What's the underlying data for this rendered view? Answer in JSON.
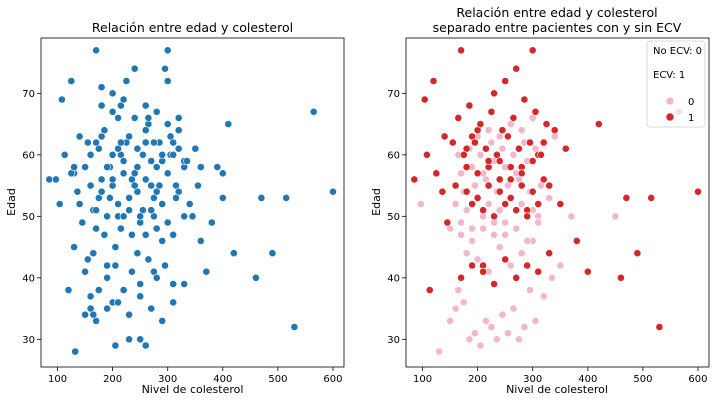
{
  "chart_data": [
    {
      "type": "scatter",
      "title": "Relación entre edad y colesterol",
      "xlabel": "Nivel de colesterol",
      "ylabel": "Edad",
      "xlim": [
        70,
        620
      ],
      "ylim": [
        25.5,
        79
      ],
      "x_ticks": [
        100,
        200,
        300,
        400,
        500,
        600
      ],
      "y_ticks": [
        30,
        40,
        50,
        60,
        70
      ],
      "grid": false,
      "series": [
        {
          "color": "#1f77b4",
          "x": [
            85,
            97,
            104,
            108,
            113,
            120,
            125,
            130,
            132,
            136,
            140,
            145,
            150,
            155,
            160,
            165,
            170,
            175,
            180,
            185,
            190,
            195,
            200,
            205,
            210,
            215,
            220,
            225,
            230,
            235,
            240,
            245,
            250,
            255,
            260,
            265,
            270,
            275,
            280,
            285,
            290,
            295,
            300,
            305,
            310,
            315,
            320,
            330,
            340,
            350,
            360,
            370,
            380,
            390,
            400,
            410,
            420,
            460,
            470,
            490,
            515,
            530,
            565,
            600,
            125,
            130,
            150,
            165,
            175,
            180,
            200,
            210,
            215,
            225,
            235,
            245,
            255,
            265,
            275,
            285,
            300,
            310,
            320,
            330,
            345,
            360,
            400,
            160,
            170,
            180,
            190,
            200,
            210,
            220,
            230,
            240,
            250,
            260,
            270,
            280,
            290,
            300,
            310,
            320,
            330,
            340,
            130,
            140,
            155,
            165,
            185,
            195,
            205,
            215,
            230,
            245,
            260,
            275,
            290,
            300,
            315,
            330,
            355,
            170,
            185,
            200,
            215,
            230,
            245,
            260,
            275,
            290,
            305,
            320,
            335,
            160,
            175,
            190,
            205,
            220,
            235,
            250,
            265,
            280,
            295,
            310,
            180,
            200,
            220,
            240,
            260,
            280,
            300,
            320,
            150,
            170,
            190,
            210,
            230,
            250,
            270,
            290,
            310,
            160,
            180,
            200,
            220,
            240,
            260,
            280,
            300,
            170,
            190,
            210,
            230,
            250,
            270,
            290
          ],
          "y": [
            56,
            56,
            52,
            69,
            60,
            38,
            72,
            57,
            28,
            54,
            63,
            49,
            58,
            62,
            35,
            44,
            77,
            61,
            63,
            64,
            42,
            58,
            70,
            29,
            66,
            60,
            59,
            72,
            30,
            56,
            74,
            58,
            30,
            51,
            29,
            65,
            59,
            53,
            48,
            62,
            59,
            74,
            77,
            60,
            62,
            55,
            64,
            58,
            52,
            61,
            46,
            41,
            49,
            58,
            53,
            65,
            44,
            40,
            53,
            44,
            53,
            32,
            67,
            54,
            57,
            58,
            41,
            34,
            53,
            71,
            36,
            50,
            68,
            62,
            47,
            54,
            60,
            66,
            41,
            55,
            72,
            47,
            61,
            39,
            50,
            58,
            57,
            60,
            48,
            56,
            58,
            55,
            61,
            50,
            53,
            57,
            49,
            62,
            55,
            58,
            52,
            57,
            60,
            54,
            59,
            52,
            45,
            52,
            43,
            51,
            47,
            53,
            45,
            48,
            51,
            44,
            47,
            50,
            46,
            49,
            53,
            50,
            55,
            62,
            64,
            60,
            62,
            63,
            61,
            64,
            62,
            60,
            63,
            61,
            59,
            37,
            38,
            40,
            42,
            38,
            41,
            39,
            43,
            40,
            42,
            39,
            68,
            67,
            69,
            66,
            68,
            67,
            65,
            66,
            34,
            33,
            35,
            36,
            34,
            37,
            35,
            33,
            36,
            55,
            54,
            56,
            57,
            55,
            56,
            54,
            57,
            51,
            50,
            52,
            53,
            50,
            51,
            52
          ]
        }
      ]
    },
    {
      "type": "scatter",
      "title": "Relación entre edad y colesterol\nseparado entre pacientes con y sin ECV",
      "xlabel": "Nivel de colesterol",
      "ylabel": "Edad",
      "xlim": [
        70,
        620
      ],
      "ylim": [
        25.5,
        79
      ],
      "x_ticks": [
        100,
        200,
        300,
        400,
        500,
        600
      ],
      "y_ticks": [
        30,
        40,
        50,
        60,
        70
      ],
      "grid": false,
      "legend": {
        "placement": "top-right",
        "lines": [
          "No ECV: 0",
          "ECV: 1"
        ]
      },
      "series": [
        {
          "name": "0",
          "color": "#f4b6cb",
          "x": [
            97,
            130,
            150,
            160,
            165,
            175,
            185,
            195,
            205,
            215,
            225,
            235,
            245,
            255,
            265,
            275,
            285,
            295,
            305,
            320,
            335,
            350,
            180,
            200,
            220,
            240,
            260,
            280,
            300,
            170,
            190,
            210,
            230,
            250,
            270,
            290,
            310,
            160,
            180,
            200,
            220,
            240,
            260,
            280,
            300,
            175,
            195,
            215,
            235,
            255,
            275,
            295,
            315,
            330,
            370,
            170,
            190,
            210,
            230,
            250,
            270,
            290,
            450,
            165,
            185,
            205,
            225,
            245,
            265,
            285,
            305,
            200,
            220,
            240,
            260,
            280,
            300,
            320,
            340,
            150,
            170,
            190,
            210,
            230,
            250,
            270,
            290,
            310
          ],
          "y": [
            52,
            28,
            33,
            35,
            38,
            36,
            30,
            31,
            29,
            33,
            32,
            30,
            34,
            31,
            35,
            30,
            32,
            38,
            33,
            37,
            40,
            42,
            44,
            43,
            41,
            45,
            42,
            44,
            46,
            47,
            46,
            48,
            47,
            49,
            48,
            46,
            50,
            52,
            51,
            53,
            52,
            51,
            53,
            52,
            51,
            54,
            55,
            56,
            54,
            55,
            56,
            54,
            55,
            53,
            50,
            57,
            58,
            57,
            59,
            58,
            57,
            59,
            50,
            60,
            61,
            60,
            62,
            61,
            60,
            62,
            61,
            63,
            64,
            63,
            65,
            64,
            66,
            62,
            63,
            48,
            49,
            48,
            50,
            49,
            47,
            48,
            50,
            49
          ]
        },
        {
          "name": "1",
          "color": "#d62728",
          "x": [
            85,
            104,
            108,
            113,
            120,
            125,
            136,
            140,
            145,
            155,
            170,
            180,
            190,
            200,
            210,
            220,
            230,
            240,
            250,
            260,
            270,
            280,
            290,
            300,
            310,
            320,
            330,
            340,
            350,
            360,
            380,
            400,
            420,
            460,
            470,
            490,
            515,
            530,
            565,
            600,
            165,
            185,
            205,
            225,
            245,
            265,
            285,
            305,
            325,
            175,
            195,
            215,
            235,
            255,
            275,
            295,
            315,
            180,
            200,
            220,
            240,
            260,
            280,
            300,
            320,
            160,
            180,
            200,
            220,
            240,
            260,
            280,
            300,
            190,
            210,
            230,
            250,
            270,
            290,
            310,
            170,
            190,
            210,
            230,
            250,
            270,
            290,
            310,
            330
          ],
          "y": [
            56,
            69,
            60,
            38,
            72,
            57,
            54,
            63,
            49,
            62,
            77,
            61,
            63,
            64,
            42,
            58,
            70,
            59,
            72,
            56,
            74,
            58,
            51,
            77,
            60,
            62,
            55,
            64,
            52,
            61,
            46,
            41,
            65,
            40,
            53,
            44,
            53,
            32,
            67,
            54,
            66,
            68,
            65,
            67,
            64,
            66,
            69,
            67,
            65,
            60,
            62,
            61,
            60,
            63,
            61,
            62,
            60,
            58,
            57,
            59,
            56,
            58,
            57,
            59,
            56,
            55,
            54,
            53,
            55,
            54,
            53,
            55,
            54,
            52,
            51,
            50,
            52,
            51,
            50,
            52,
            40,
            42,
            41,
            39,
            43,
            40,
            42,
            41,
            44
          ]
        }
      ]
    }
  ]
}
